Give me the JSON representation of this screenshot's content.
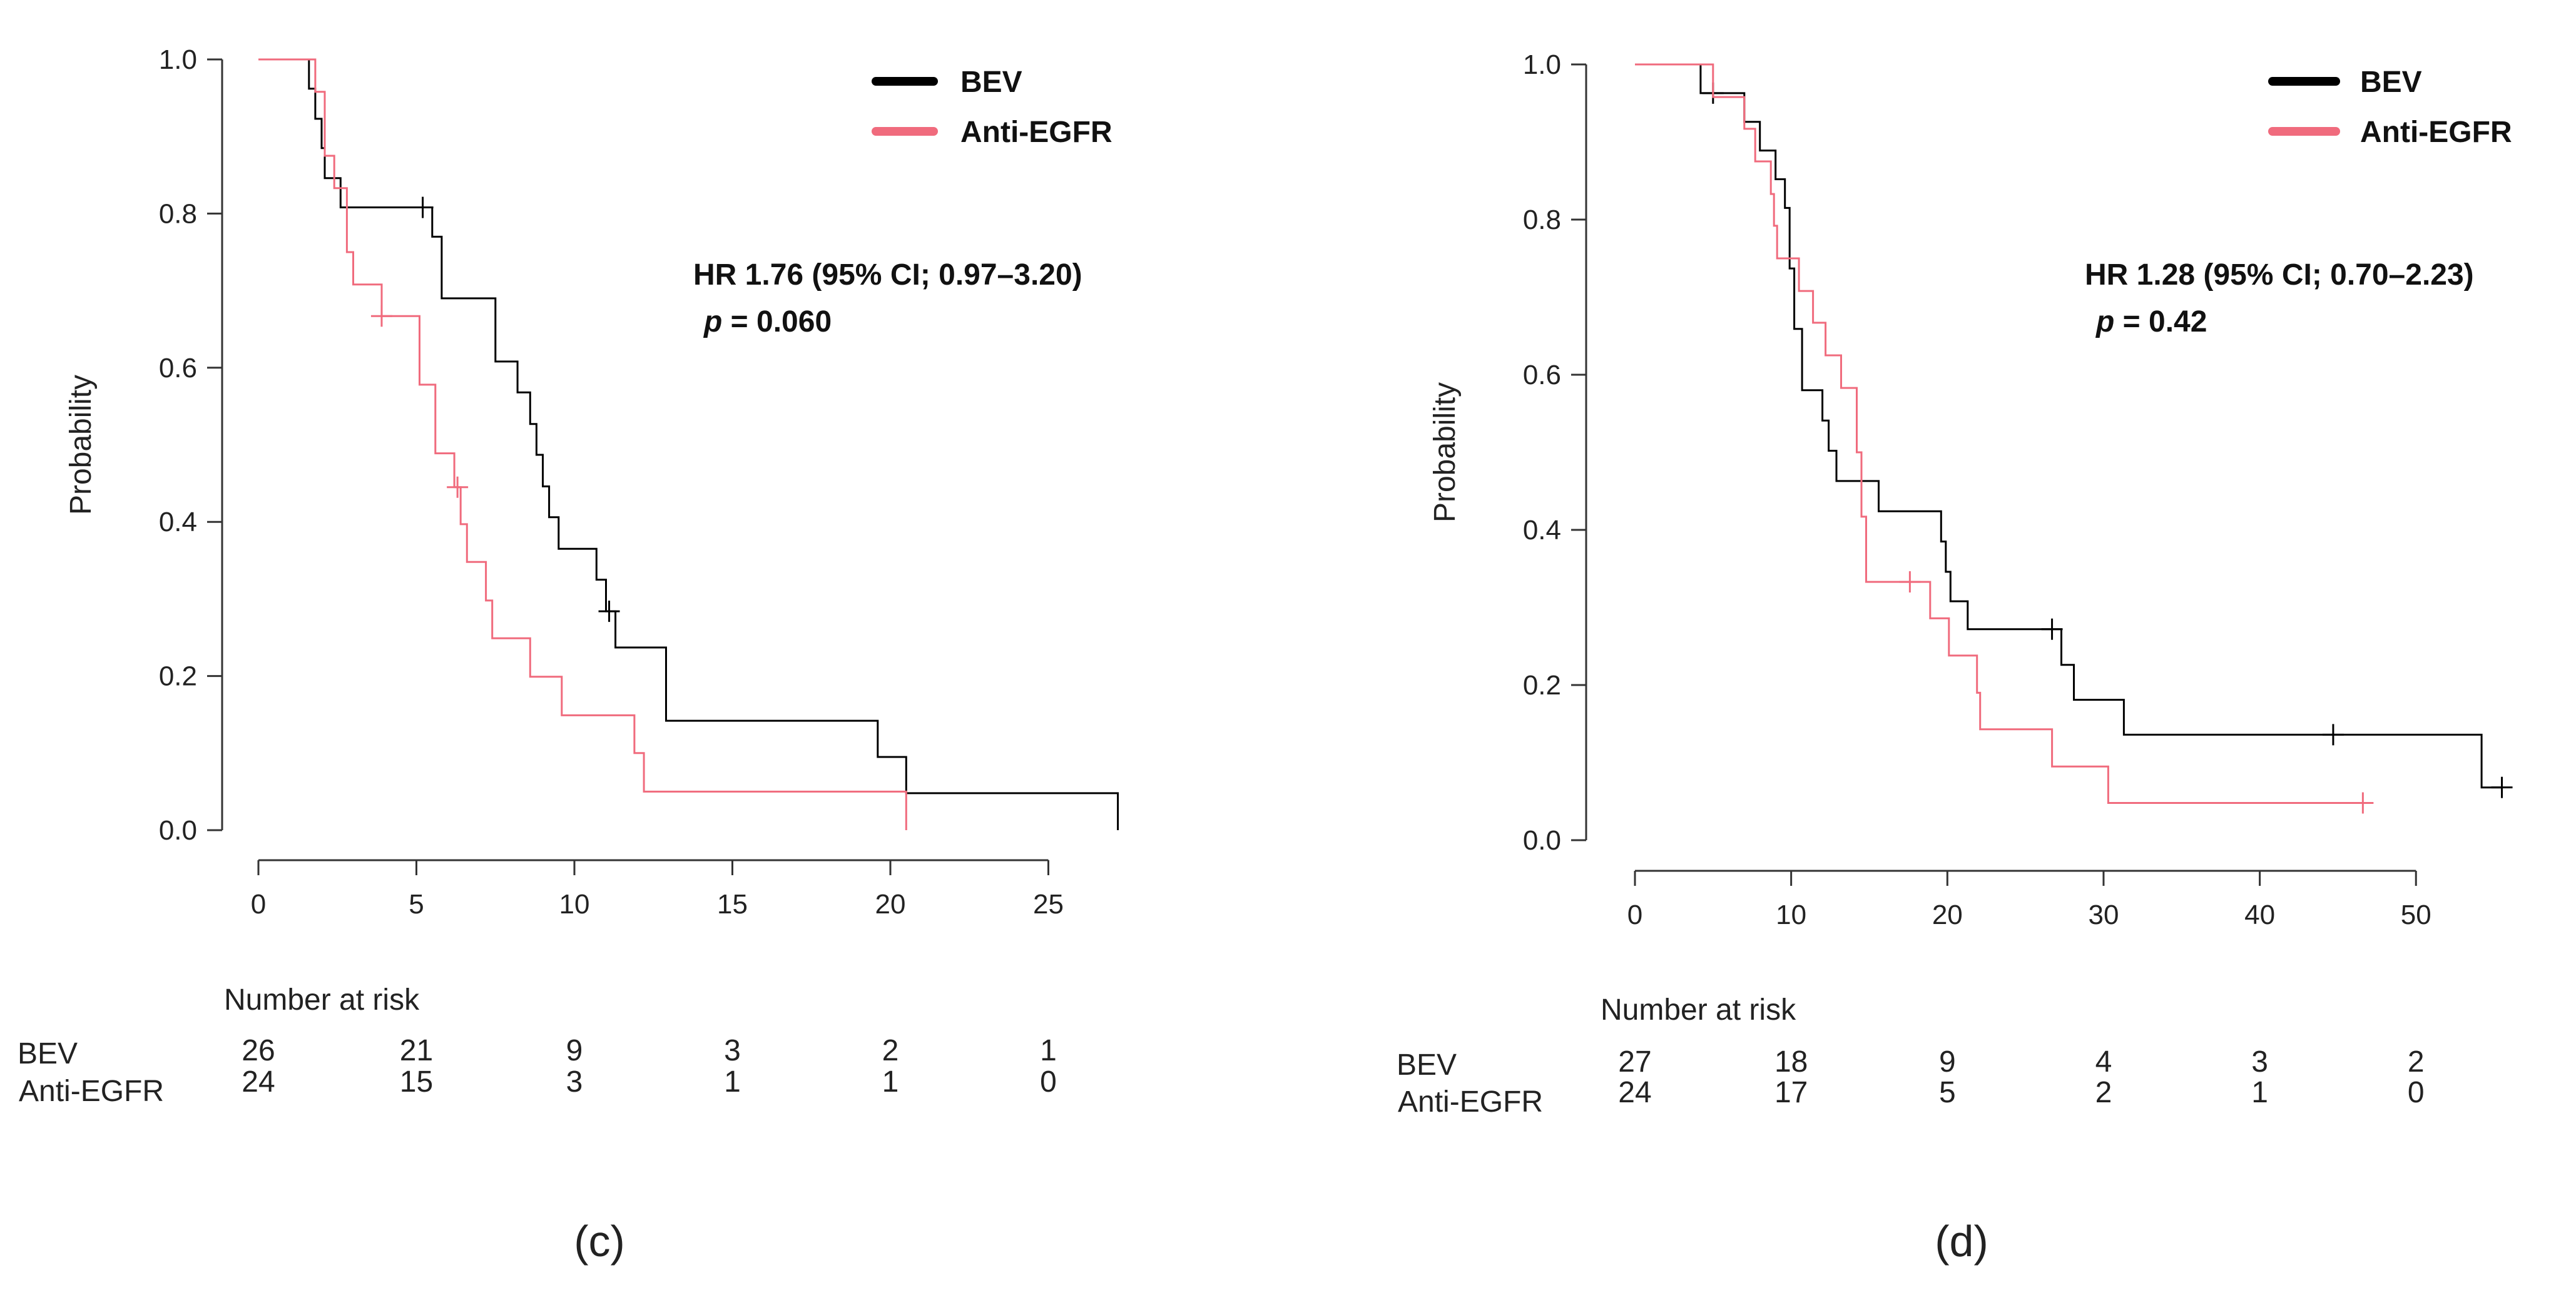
{
  "chart_data": [
    {
      "type": "line",
      "panel_label": "(c)",
      "ylabel": "Probability",
      "xlim": [
        0,
        28
      ],
      "ylim": [
        0,
        1
      ],
      "xticks": [
        "0",
        "5",
        "10",
        "15",
        "20",
        "25"
      ],
      "xtick_values": [
        0,
        5,
        10,
        15,
        20,
        25
      ],
      "yticks": [
        "0.0",
        "0.2",
        "0.4",
        "0.6",
        "0.8",
        "1.0"
      ],
      "ytick_values": [
        0,
        0.2,
        0.4,
        0.6,
        0.8,
        1.0
      ],
      "legend_position": "top-right",
      "annotation": {
        "hr": "HR 1.76 (95% CI; 0.97–3.20)",
        "p_symbol": "p",
        "p_value": "= 0.060"
      },
      "series": [
        {
          "name": "BEV",
          "color": "#000000",
          "steps": [
            [
              0,
              1.0
            ],
            [
              1.6,
              1.0
            ],
            [
              1.6,
              0.962
            ],
            [
              1.8,
              0.962
            ],
            [
              1.8,
              0.923
            ],
            [
              2.0,
              0.923
            ],
            [
              2.0,
              0.885
            ],
            [
              2.1,
              0.885
            ],
            [
              2.1,
              0.846
            ],
            [
              2.6,
              0.846
            ],
            [
              2.6,
              0.808
            ],
            [
              5.2,
              0.808
            ],
            [
              5.5,
              0.808
            ],
            [
              5.5,
              0.77
            ],
            [
              5.8,
              0.77
            ],
            [
              5.8,
              0.69
            ],
            [
              7.5,
              0.69
            ],
            [
              7.5,
              0.608
            ],
            [
              8.2,
              0.608
            ],
            [
              8.2,
              0.568
            ],
            [
              8.6,
              0.568
            ],
            [
              8.6,
              0.527
            ],
            [
              8.8,
              0.527
            ],
            [
              8.8,
              0.487
            ],
            [
              9.0,
              0.487
            ],
            [
              9.0,
              0.446
            ],
            [
              9.2,
              0.446
            ],
            [
              9.2,
              0.406
            ],
            [
              9.5,
              0.406
            ],
            [
              9.5,
              0.365
            ],
            [
              10.7,
              0.365
            ],
            [
              10.7,
              0.325
            ],
            [
              11.0,
              0.325
            ],
            [
              11.0,
              0.284
            ],
            [
              11.3,
              0.284
            ],
            [
              11.3,
              0.237
            ],
            [
              12.9,
              0.237
            ],
            [
              12.9,
              0.142
            ],
            [
              19.6,
              0.142
            ],
            [
              19.6,
              0.095
            ],
            [
              20.5,
              0.095
            ],
            [
              20.5,
              0.048
            ],
            [
              27.2,
              0.048
            ],
            [
              27.2,
              0.0
            ]
          ],
          "censor_marks": [
            [
              5.2,
              0.808
            ],
            [
              11.1,
              0.284
            ]
          ]
        },
        {
          "name": "Anti-EGFR",
          "color": "#f06b7d",
          "steps": [
            [
              0,
              1.0
            ],
            [
              1.8,
              1.0
            ],
            [
              1.8,
              0.958
            ],
            [
              2.1,
              0.958
            ],
            [
              2.1,
              0.875
            ],
            [
              2.4,
              0.875
            ],
            [
              2.4,
              0.833
            ],
            [
              2.8,
              0.833
            ],
            [
              2.8,
              0.75
            ],
            [
              3.0,
              0.75
            ],
            [
              3.0,
              0.708
            ],
            [
              3.9,
              0.708
            ],
            [
              3.9,
              0.667
            ],
            [
              5.1,
              0.667
            ],
            [
              5.1,
              0.578
            ],
            [
              5.6,
              0.578
            ],
            [
              5.6,
              0.489
            ],
            [
              6.2,
              0.489
            ],
            [
              6.2,
              0.445
            ],
            [
              6.4,
              0.445
            ],
            [
              6.4,
              0.397
            ],
            [
              6.6,
              0.397
            ],
            [
              6.6,
              0.348
            ],
            [
              7.2,
              0.348
            ],
            [
              7.2,
              0.298
            ],
            [
              7.4,
              0.298
            ],
            [
              7.4,
              0.249
            ],
            [
              8.6,
              0.249
            ],
            [
              8.6,
              0.199
            ],
            [
              9.6,
              0.199
            ],
            [
              9.6,
              0.149
            ],
            [
              11.9,
              0.149
            ],
            [
              11.9,
              0.1
            ],
            [
              12.2,
              0.1
            ],
            [
              12.2,
              0.05
            ],
            [
              20.5,
              0.05
            ],
            [
              20.5,
              0.0
            ]
          ],
          "censor_marks": [
            [
              3.9,
              0.667
            ],
            [
              6.3,
              0.445
            ]
          ]
        }
      ],
      "risk_table": {
        "title": "Number at risk",
        "rows": [
          {
            "label": "BEV",
            "values": [
              "26",
              "21",
              "9",
              "3",
              "2",
              "1"
            ]
          },
          {
            "label": "Anti-EGFR",
            "values": [
              "24",
              "15",
              "3",
              "1",
              "1",
              "0"
            ]
          }
        ]
      }
    },
    {
      "type": "line",
      "panel_label": "(d)",
      "ylabel": "Probability",
      "xlim": [
        0,
        57
      ],
      "ylim": [
        0,
        1
      ],
      "xticks": [
        "0",
        "10",
        "20",
        "30",
        "40",
        "50"
      ],
      "xtick_values": [
        0,
        10,
        20,
        30,
        40,
        50
      ],
      "yticks": [
        "0.0",
        "0.2",
        "0.4",
        "0.6",
        "0.8",
        "1.0"
      ],
      "ytick_values": [
        0,
        0.2,
        0.4,
        0.6,
        0.8,
        1.0
      ],
      "legend_position": "top-right",
      "annotation": {
        "hr": "HR 1.28 (95% CI; 0.70–2.23)",
        "p_symbol": "p",
        "p_value": "= 0.42"
      },
      "series": [
        {
          "name": "BEV",
          "color": "#000000",
          "steps": [
            [
              0,
              1.0
            ],
            [
              4.2,
              1.0
            ],
            [
              4.2,
              0.963
            ],
            [
              7.0,
              0.963
            ],
            [
              7.0,
              0.926
            ],
            [
              8.0,
              0.926
            ],
            [
              8.0,
              0.889
            ],
            [
              9.0,
              0.889
            ],
            [
              9.0,
              0.852
            ],
            [
              9.6,
              0.852
            ],
            [
              9.6,
              0.815
            ],
            [
              9.9,
              0.815
            ],
            [
              9.9,
              0.737
            ],
            [
              10.2,
              0.737
            ],
            [
              10.2,
              0.659
            ],
            [
              10.7,
              0.659
            ],
            [
              10.7,
              0.58
            ],
            [
              12.0,
              0.58
            ],
            [
              12.0,
              0.541
            ],
            [
              12.4,
              0.541
            ],
            [
              12.4,
              0.502
            ],
            [
              12.9,
              0.502
            ],
            [
              12.9,
              0.463
            ],
            [
              15.6,
              0.463
            ],
            [
              15.6,
              0.424
            ],
            [
              19.6,
              0.424
            ],
            [
              19.6,
              0.385
            ],
            [
              19.9,
              0.385
            ],
            [
              19.9,
              0.346
            ],
            [
              20.2,
              0.346
            ],
            [
              20.2,
              0.308
            ],
            [
              21.3,
              0.308
            ],
            [
              21.3,
              0.272
            ],
            [
              26.7,
              0.272
            ],
            [
              27.3,
              0.272
            ],
            [
              27.3,
              0.226
            ],
            [
              28.1,
              0.226
            ],
            [
              28.1,
              0.181
            ],
            [
              31.3,
              0.181
            ],
            [
              31.3,
              0.136
            ],
            [
              54.2,
              0.136
            ],
            [
              54.2,
              0.068
            ],
            [
              55.5,
              0.068
            ]
          ],
          "censor_marks": [
            [
              5.0,
              0.963
            ],
            [
              26.7,
              0.272
            ],
            [
              44.7,
              0.136
            ],
            [
              55.5,
              0.068
            ]
          ]
        },
        {
          "name": "Anti-EGFR",
          "color": "#f06b7d",
          "steps": [
            [
              0,
              1.0
            ],
            [
              5.0,
              1.0
            ],
            [
              5.0,
              0.958
            ],
            [
              7.0,
              0.958
            ],
            [
              7.0,
              0.917
            ],
            [
              7.7,
              0.917
            ],
            [
              7.7,
              0.875
            ],
            [
              8.7,
              0.875
            ],
            [
              8.7,
              0.833
            ],
            [
              8.9,
              0.833
            ],
            [
              8.9,
              0.792
            ],
            [
              9.1,
              0.792
            ],
            [
              9.1,
              0.75
            ],
            [
              10.5,
              0.75
            ],
            [
              10.5,
              0.708
            ],
            [
              11.4,
              0.708
            ],
            [
              11.4,
              0.667
            ],
            [
              12.2,
              0.667
            ],
            [
              12.2,
              0.625
            ],
            [
              13.2,
              0.625
            ],
            [
              13.2,
              0.583
            ],
            [
              14.2,
              0.583
            ],
            [
              14.2,
              0.5
            ],
            [
              14.5,
              0.5
            ],
            [
              14.5,
              0.417
            ],
            [
              14.8,
              0.417
            ],
            [
              14.8,
              0.333
            ],
            [
              17.6,
              0.333
            ],
            [
              18.9,
              0.333
            ],
            [
              18.9,
              0.286
            ],
            [
              20.1,
              0.286
            ],
            [
              20.1,
              0.238
            ],
            [
              21.9,
              0.238
            ],
            [
              21.9,
              0.19
            ],
            [
              22.1,
              0.19
            ],
            [
              22.1,
              0.143
            ],
            [
              26.7,
              0.143
            ],
            [
              26.7,
              0.095
            ],
            [
              30.3,
              0.095
            ],
            [
              30.3,
              0.048
            ],
            [
              46.6,
              0.048
            ]
          ],
          "censor_marks": [
            [
              17.6,
              0.333
            ],
            [
              46.6,
              0.048
            ]
          ]
        }
      ],
      "risk_table": {
        "title": "Number at risk",
        "rows": [
          {
            "label": "BEV",
            "values": [
              "27",
              "18",
              "9",
              "4",
              "3",
              "2"
            ]
          },
          {
            "label": "Anti-EGFR",
            "values": [
              "24",
              "17",
              "5",
              "2",
              "1",
              "0"
            ]
          }
        ]
      }
    }
  ]
}
